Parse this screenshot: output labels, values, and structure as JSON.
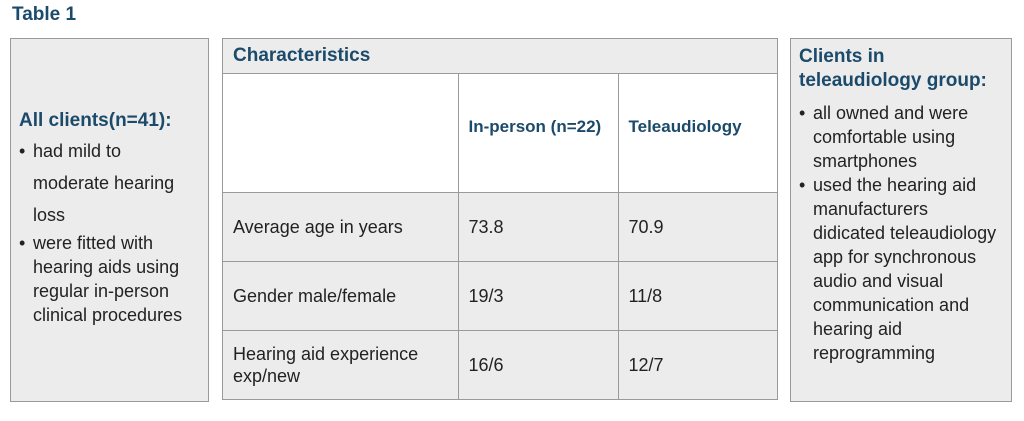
{
  "table_title": "Table 1",
  "left_box": {
    "heading": "All clients(n=41):",
    "bullets": [
      "had mild to moderate hearing loss",
      "were fitted with hearing aids using regular in-person clinical procedures"
    ]
  },
  "center_table": {
    "header": "Characteristics",
    "columns": [
      "",
      "In-person (n=22)",
      "Teleaudiology"
    ],
    "rows": [
      {
        "label": "Average age in years",
        "in_person": "73.8",
        "tele": "70.9"
      },
      {
        "label": "Gender male/female",
        "in_person": "19/3",
        "tele": "11/8"
      },
      {
        "label": "Hearing aid experience exp/new",
        "in_person": "16/6",
        "tele": "12/7"
      }
    ]
  },
  "right_box": {
    "heading": "Clients in teleaudiology group:",
    "bullets": [
      "all owned and were comfortable using smartphones",
      "used the hearing aid manufacturers didicated teleaudiology app for synchronous audio and visual communication and hearing aid reprogramming"
    ]
  }
}
